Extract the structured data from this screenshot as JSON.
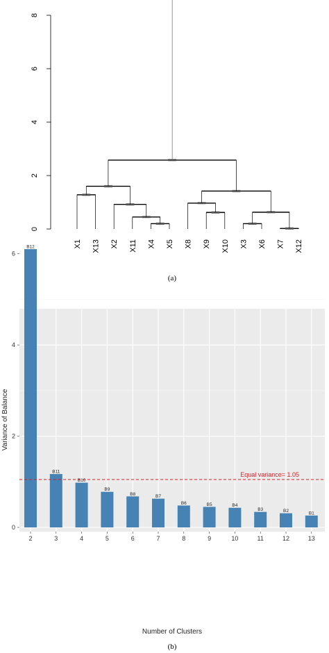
{
  "chart_data": [
    {
      "type": "dendrogram",
      "ylim": [
        0,
        8
      ],
      "yticks": [
        "0",
        "2",
        "4",
        "6",
        "8"
      ],
      "leaves": [
        "X1",
        "X13",
        "X2",
        "X11",
        "X4",
        "X5",
        "X8",
        "X9",
        "X10",
        "X3",
        "X6",
        "X7",
        "X12"
      ],
      "merges": [
        {
          "a": "X4",
          "b": "X5",
          "height": 0.2
        },
        {
          "a": "X11",
          "b": "X4|X5",
          "height": 0.45
        },
        {
          "a": "X2",
          "b": "X11|X4|X5",
          "height": 0.92
        },
        {
          "a": "X1",
          "b": "X13",
          "height": 1.28
        },
        {
          "a": "X1|X13",
          "b": "X2|X11|X4|X5",
          "height": 1.6
        },
        {
          "a": "X9",
          "b": "X10",
          "height": 0.62
        },
        {
          "a": "X8",
          "b": "X9|X10",
          "height": 0.97
        },
        {
          "a": "X3",
          "b": "X6",
          "height": 0.2
        },
        {
          "a": "X7",
          "b": "X12",
          "height": 0.02
        },
        {
          "a": "X3|X6",
          "b": "X7|X12",
          "height": 0.63
        },
        {
          "a": "X8|X9|X10",
          "b": "X3|X6|X7|X12",
          "height": 1.42
        },
        {
          "a": "left",
          "b": "right",
          "height": 2.58
        }
      ],
      "root_height": 8.6,
      "caption": "(a)"
    },
    {
      "type": "bar",
      "categories": [
        "2",
        "3",
        "4",
        "5",
        "6",
        "7",
        "8",
        "9",
        "10",
        "11",
        "12",
        "13"
      ],
      "values": [
        6.1,
        1.17,
        0.98,
        0.78,
        0.68,
        0.63,
        0.48,
        0.45,
        0.43,
        0.34,
        0.31,
        0.26
      ],
      "bar_labels": [
        "B12",
        "B11",
        "B10",
        "B9",
        "B8",
        "B7",
        "B6",
        "B5",
        "B4",
        "B3",
        "B2",
        "B1"
      ],
      "ylim": [
        0,
        6.5
      ],
      "yticks": [
        "0",
        "2",
        "4",
        "6"
      ],
      "xlabel": "Number of Clusters",
      "ylabel": "Variance of Balance",
      "hline": {
        "value": 1.05,
        "label": "Equal variance=  1.05",
        "color": "#e41a1c"
      },
      "bar_color": "#4682b4",
      "caption": "(b)"
    }
  ]
}
